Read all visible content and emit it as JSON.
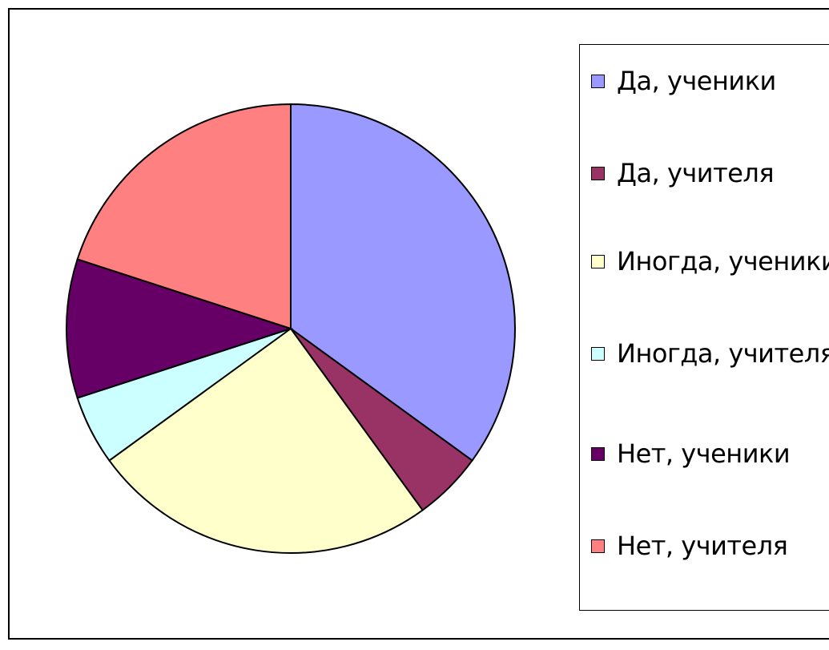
{
  "chart_data": {
    "type": "pie",
    "categories": [
      "Да, ученики",
      "Да, учителя",
      "Иногда, ученики",
      "Иногда, учителя",
      "Нет, ученики",
      "Нет, учителя"
    ],
    "values": [
      35,
      5,
      25,
      5,
      10,
      20
    ],
    "colors": [
      "#9999ff",
      "#993366",
      "#ffffcc",
      "#ccffff",
      "#660066",
      "#ff8080"
    ],
    "legend": "right"
  }
}
